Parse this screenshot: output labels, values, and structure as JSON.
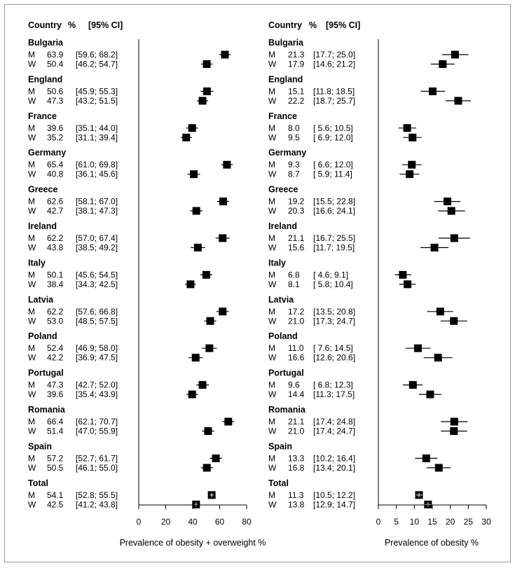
{
  "chart_data": [
    {
      "type": "forest",
      "header": {
        "country": "Country",
        "pct": "%",
        "ci": "[95% CI]"
      },
      "xlabel": "Prevalence of obesity + overweight  %",
      "xlim": [
        0,
        80
      ],
      "xticks": [
        "0",
        "20",
        "40",
        "60",
        "80"
      ],
      "groups": [
        {
          "country": "Bulgaria",
          "rows": [
            {
              "sex": "M",
              "value": 63.9,
              "text": "63.9",
              "ci": "[59.6; 68.2]",
              "low": 59.6,
              "high": 68.2
            },
            {
              "sex": "W",
              "value": 50.4,
              "text": "50.4",
              "ci": "[46.2; 54.7]",
              "low": 46.2,
              "high": 54.7
            }
          ]
        },
        {
          "country": "England",
          "rows": [
            {
              "sex": "M",
              "value": 50.6,
              "text": "50.6",
              "ci": "[45.9; 55.3]",
              "low": 45.9,
              "high": 55.3
            },
            {
              "sex": "W",
              "value": 47.3,
              "text": "47.3",
              "ci": "[43.2; 51.5]",
              "low": 43.2,
              "high": 51.5
            }
          ]
        },
        {
          "country": "France",
          "rows": [
            {
              "sex": "M",
              "value": 39.6,
              "text": "39.6",
              "ci": "[35.1; 44.0]",
              "low": 35.1,
              "high": 44.0
            },
            {
              "sex": "W",
              "value": 35.2,
              "text": "35.2",
              "ci": "[31.1; 39.4]",
              "low": 31.1,
              "high": 39.4
            }
          ]
        },
        {
          "country": "Germany",
          "rows": [
            {
              "sex": "M",
              "value": 65.4,
              "text": "65.4",
              "ci": "[61.0; 69.8]",
              "low": 61.0,
              "high": 69.8
            },
            {
              "sex": "W",
              "value": 40.8,
              "text": "40.8",
              "ci": "[36.1; 45.6]",
              "low": 36.1,
              "high": 45.6
            }
          ]
        },
        {
          "country": "Greece",
          "rows": [
            {
              "sex": "M",
              "value": 62.6,
              "text": "62.6",
              "ci": "[58.1; 67.0]",
              "low": 58.1,
              "high": 67.0
            },
            {
              "sex": "W",
              "value": 42.7,
              "text": "42.7",
              "ci": "[38.1; 47.3]",
              "low": 38.1,
              "high": 47.3
            }
          ]
        },
        {
          "country": "Ireland",
          "rows": [
            {
              "sex": "M",
              "value": 62.2,
              "text": "62.2",
              "ci": "[57.0; 67.4]",
              "low": 57.0,
              "high": 67.4
            },
            {
              "sex": "W",
              "value": 43.8,
              "text": "43.8",
              "ci": "[38.5; 49.2]",
              "low": 38.5,
              "high": 49.2
            }
          ]
        },
        {
          "country": "Italy",
          "rows": [
            {
              "sex": "M",
              "value": 50.1,
              "text": "50.1",
              "ci": "[45.6; 54.5]",
              "low": 45.6,
              "high": 54.5
            },
            {
              "sex": "W",
              "value": 38.4,
              "text": "38.4",
              "ci": "[34.3; 42.5]",
              "low": 34.3,
              "high": 42.5
            }
          ]
        },
        {
          "country": "Latvia",
          "rows": [
            {
              "sex": "M",
              "value": 62.2,
              "text": "62.2",
              "ci": "[57.6; 66.8]",
              "low": 57.6,
              "high": 66.8
            },
            {
              "sex": "W",
              "value": 53.0,
              "text": "53.0",
              "ci": "[48.5; 57.5]",
              "low": 48.5,
              "high": 57.5
            }
          ]
        },
        {
          "country": "Poland",
          "rows": [
            {
              "sex": "M",
              "value": 52.4,
              "text": "52.4",
              "ci": "[46.9; 58.0]",
              "low": 46.9,
              "high": 58.0
            },
            {
              "sex": "W",
              "value": 42.2,
              "text": "42.2",
              "ci": "[36.9; 47.5]",
              "low": 36.9,
              "high": 47.5
            }
          ]
        },
        {
          "country": "Portugal",
          "rows": [
            {
              "sex": "M",
              "value": 47.3,
              "text": "47.3",
              "ci": "[42.7; 52.0]",
              "low": 42.7,
              "high": 52.0
            },
            {
              "sex": "W",
              "value": 39.6,
              "text": "39.6",
              "ci": "[35.4; 43.9]",
              "low": 35.4,
              "high": 43.9
            }
          ]
        },
        {
          "country": "Romania",
          "rows": [
            {
              "sex": "M",
              "value": 66.4,
              "text": "66.4",
              "ci": "[62.1; 70.7]",
              "low": 62.1,
              "high": 70.7
            },
            {
              "sex": "W",
              "value": 51.4,
              "text": "51.4",
              "ci": "[47.0; 55.9]",
              "low": 47.0,
              "high": 55.9
            }
          ]
        },
        {
          "country": "Spain",
          "rows": [
            {
              "sex": "M",
              "value": 57.2,
              "text": "57.2",
              "ci": "[52.7; 61.7]",
              "low": 52.7,
              "high": 61.7
            },
            {
              "sex": "W",
              "value": 50.5,
              "text": "50.5",
              "ci": "[46.1; 55.0]",
              "low": 46.1,
              "high": 55.0
            }
          ]
        },
        {
          "country": "Total",
          "rows": [
            {
              "sex": "M",
              "value": 54.1,
              "text": "54.1",
              "ci": "[52.8; 55.5]",
              "low": 52.8,
              "high": 55.5
            },
            {
              "sex": "W",
              "value": 42.5,
              "text": "42.5",
              "ci": "[41.2; 43.8]",
              "low": 41.2,
              "high": 43.8
            }
          ]
        }
      ]
    },
    {
      "type": "forest",
      "header": {
        "country": "Country",
        "pct": "%",
        "ci": "[95% CI]"
      },
      "xlabel": "Prevalence of obesity %",
      "xlim": [
        0,
        30
      ],
      "xticks": [
        "0",
        "5",
        "10",
        "15",
        "20",
        "25",
        "30"
      ],
      "groups": [
        {
          "country": "Bulgaria",
          "rows": [
            {
              "sex": "M",
              "value": 21.3,
              "text": "21.3",
              "ci": "[17.7; 25.0]",
              "low": 17.7,
              "high": 25.0
            },
            {
              "sex": "W",
              "value": 17.9,
              "text": "17.9",
              "ci": "[14.6; 21.2]",
              "low": 14.6,
              "high": 21.2
            }
          ]
        },
        {
          "country": "England",
          "rows": [
            {
              "sex": "M",
              "value": 15.1,
              "text": "15.1",
              "ci": "[11.8; 18.5]",
              "low": 11.8,
              "high": 18.5
            },
            {
              "sex": "W",
              "value": 22.2,
              "text": "22.2",
              "ci": "[18.7; 25.7]",
              "low": 18.7,
              "high": 25.7
            }
          ]
        },
        {
          "country": "France",
          "rows": [
            {
              "sex": "M",
              "value": 8.0,
              "text": "8.0",
              "ci": "[ 5.6; 10.5]",
              "low": 5.6,
              "high": 10.5
            },
            {
              "sex": "W",
              "value": 9.5,
              "text": "9.5",
              "ci": "[ 6.9; 12.0]",
              "low": 6.9,
              "high": 12.0
            }
          ]
        },
        {
          "country": "Germany",
          "rows": [
            {
              "sex": "M",
              "value": 9.3,
              "text": "9.3",
              "ci": "[ 6.6; 12.0]",
              "low": 6.6,
              "high": 12.0
            },
            {
              "sex": "W",
              "value": 8.7,
              "text": "8.7",
              "ci": "[ 5.9; 11.4]",
              "low": 5.9,
              "high": 11.4
            }
          ]
        },
        {
          "country": "Greece",
          "rows": [
            {
              "sex": "M",
              "value": 19.2,
              "text": "19.2",
              "ci": "[15.5; 22.8]",
              "low": 15.5,
              "high": 22.8
            },
            {
              "sex": "W",
              "value": 20.3,
              "text": "20.3",
              "ci": "[16.6; 24.1]",
              "low": 16.6,
              "high": 24.1
            }
          ]
        },
        {
          "country": "Ireland",
          "rows": [
            {
              "sex": "M",
              "value": 21.1,
              "text": "21.1",
              "ci": "[16.7; 25.5]",
              "low": 16.7,
              "high": 25.5
            },
            {
              "sex": "W",
              "value": 15.6,
              "text": "15.6",
              "ci": "[11.7; 19.5]",
              "low": 11.7,
              "high": 19.5
            }
          ]
        },
        {
          "country": "Italy",
          "rows": [
            {
              "sex": "M",
              "value": 6.8,
              "text": "6.8",
              "ci": "[ 4.6;  9.1]",
              "low": 4.6,
              "high": 9.1
            },
            {
              "sex": "W",
              "value": 8.1,
              "text": "8.1",
              "ci": "[ 5.8; 10.4]",
              "low": 5.8,
              "high": 10.4
            }
          ]
        },
        {
          "country": "Latvia",
          "rows": [
            {
              "sex": "M",
              "value": 17.2,
              "text": "17.2",
              "ci": "[13.5; 20.8]",
              "low": 13.5,
              "high": 20.8
            },
            {
              "sex": "W",
              "value": 21.0,
              "text": "21.0",
              "ci": "[17.3; 24.7]",
              "low": 17.3,
              "high": 24.7
            }
          ]
        },
        {
          "country": "Poland",
          "rows": [
            {
              "sex": "M",
              "value": 11.0,
              "text": "11.0",
              "ci": "[ 7.6; 14.5]",
              "low": 7.6,
              "high": 14.5
            },
            {
              "sex": "W",
              "value": 16.6,
              "text": "16.6",
              "ci": "[12.6; 20.6]",
              "low": 12.6,
              "high": 20.6
            }
          ]
        },
        {
          "country": "Portugal",
          "rows": [
            {
              "sex": "M",
              "value": 9.6,
              "text": "9.6",
              "ci": "[ 6.8; 12.3]",
              "low": 6.8,
              "high": 12.3
            },
            {
              "sex": "W",
              "value": 14.4,
              "text": "14.4",
              "ci": "[11.3; 17.5]",
              "low": 11.3,
              "high": 17.5
            }
          ]
        },
        {
          "country": "Romania",
          "rows": [
            {
              "sex": "M",
              "value": 21.1,
              "text": "21.1",
              "ci": "[17.4; 24.8]",
              "low": 17.4,
              "high": 24.8
            },
            {
              "sex": "W",
              "value": 21.0,
              "text": "21.0",
              "ci": "[17.4; 24.7]",
              "low": 17.4,
              "high": 24.7
            }
          ]
        },
        {
          "country": "Spain",
          "rows": [
            {
              "sex": "M",
              "value": 13.3,
              "text": "13.3",
              "ci": "[10.2; 16.4]",
              "low": 10.2,
              "high": 16.4
            },
            {
              "sex": "W",
              "value": 16.8,
              "text": "16.8",
              "ci": "[13.4; 20.1]",
              "low": 13.4,
              "high": 20.1
            }
          ]
        },
        {
          "country": "Total",
          "rows": [
            {
              "sex": "M",
              "value": 11.3,
              "text": "11.3",
              "ci": "[10.5; 12.2]",
              "low": 10.5,
              "high": 12.2
            },
            {
              "sex": "W",
              "value": 13.8,
              "text": "13.8",
              "ci": "[12.9; 14.7]",
              "low": 12.9,
              "high": 14.7
            }
          ]
        }
      ]
    }
  ]
}
